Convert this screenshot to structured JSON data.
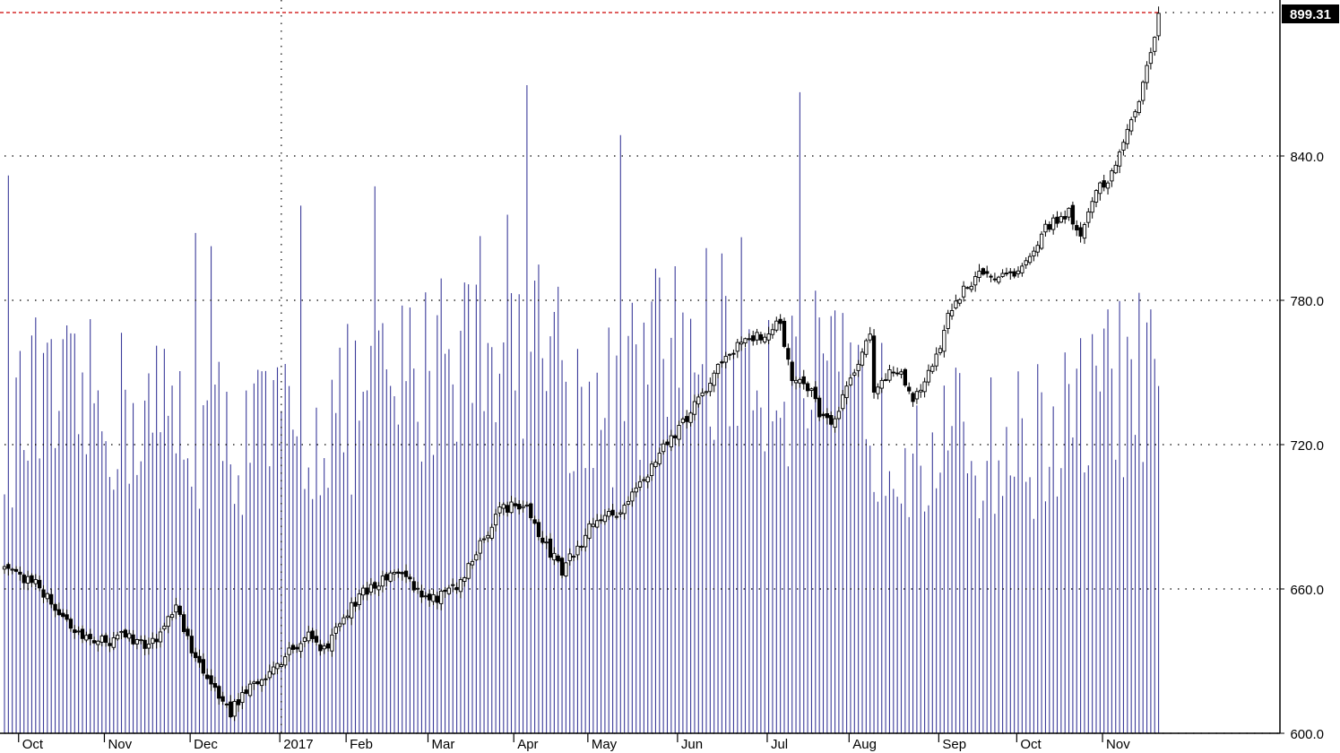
{
  "chart_data": {
    "type": "candlestick",
    "y_axis": {
      "ticks": [
        "600.0",
        "660.0",
        "720.0",
        "780.0",
        "840.0"
      ],
      "tick_values": [
        600,
        660,
        720,
        780,
        840
      ],
      "range": [
        600,
        900
      ],
      "position": "right",
      "grid": "dotted"
    },
    "last_price": {
      "label": "899.31",
      "value": 899.31,
      "line_color": "#cc0000"
    },
    "x_axis": {
      "labels": [
        "Oct",
        "Nov",
        "Dec",
        "2017",
        "Feb",
        "Mar",
        "Apr",
        "May",
        "Jun",
        "Jul",
        "Aug",
        "Sep",
        "Oct",
        "Nov"
      ],
      "label_index": [
        5,
        27,
        49,
        72,
        89,
        110,
        132,
        151,
        174,
        197,
        218,
        241,
        261,
        283
      ],
      "year_index": 71,
      "total_bars": 297
    },
    "price_keyframes": [
      [
        0,
        667
      ],
      [
        8,
        663
      ],
      [
        15,
        648
      ],
      [
        22,
        637
      ],
      [
        30,
        640
      ],
      [
        38,
        637
      ],
      [
        44,
        652
      ],
      [
        48,
        634
      ],
      [
        54,
        619
      ],
      [
        58,
        609
      ],
      [
        63,
        620
      ],
      [
        68,
        626
      ],
      [
        73,
        634
      ],
      [
        78,
        642
      ],
      [
        82,
        634
      ],
      [
        86,
        647
      ],
      [
        92,
        658
      ],
      [
        100,
        668
      ],
      [
        106,
        660
      ],
      [
        110,
        656
      ],
      [
        117,
        662
      ],
      [
        121,
        676
      ],
      [
        127,
        693
      ],
      [
        133,
        696
      ],
      [
        138,
        680
      ],
      [
        143,
        668
      ],
      [
        150,
        685
      ],
      [
        158,
        693
      ],
      [
        163,
        703
      ],
      [
        167,
        715
      ],
      [
        172,
        724
      ],
      [
        178,
        738
      ],
      [
        183,
        752
      ],
      [
        188,
        762
      ],
      [
        194,
        765
      ],
      [
        199,
        770
      ],
      [
        202,
        748
      ],
      [
        207,
        742
      ],
      [
        210,
        730
      ],
      [
        213,
        729
      ],
      [
        216,
        745
      ],
      [
        222,
        764
      ],
      [
        223,
        744
      ],
      [
        229,
        751
      ],
      [
        233,
        740
      ],
      [
        238,
        752
      ],
      [
        243,
        778
      ],
      [
        246,
        784
      ],
      [
        250,
        792
      ],
      [
        258,
        789
      ],
      [
        262,
        796
      ],
      [
        268,
        812
      ],
      [
        273,
        816
      ],
      [
        276,
        808
      ],
      [
        280,
        826
      ],
      [
        284,
        832
      ],
      [
        287,
        845
      ],
      [
        290,
        858
      ],
      [
        293,
        876
      ],
      [
        296,
        899.31
      ]
    ],
    "volume_envelope": [
      [
        0,
        118
      ],
      [
        20,
        125
      ],
      [
        40,
        122
      ],
      [
        60,
        113
      ],
      [
        80,
        118
      ],
      [
        105,
        135
      ],
      [
        125,
        162
      ],
      [
        140,
        150
      ],
      [
        150,
        118
      ],
      [
        170,
        148
      ],
      [
        190,
        150
      ],
      [
        210,
        132
      ],
      [
        230,
        115
      ],
      [
        255,
        108
      ],
      [
        275,
        120
      ],
      [
        285,
        135
      ],
      [
        296,
        132
      ]
    ],
    "volume_scale": [
      0,
      280
    ],
    "volume_color": "#3b3b9a",
    "candle_color": "#000000"
  }
}
